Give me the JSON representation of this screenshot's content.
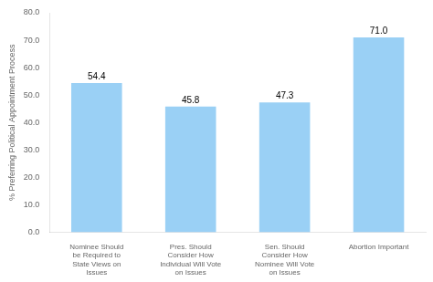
{
  "chart_data": {
    "type": "bar",
    "categories": [
      "Nominee Should\nbe Required to\nState Views on\nIssues",
      "Pres. Should\nConsider How\nIndividual Will Vote\non Issues",
      "Sen. Should\nConsider How\nNominee Will Vote\non Issues",
      "Abortion Important"
    ],
    "values": [
      54.4,
      45.8,
      47.3,
      71.0
    ],
    "value_labels": [
      "54.4",
      "45.8",
      "47.3",
      "71.0"
    ],
    "data_labels": true,
    "y_label": "% Preferring Political Appointment Process",
    "ylim": [
      0,
      80
    ],
    "yticks": [
      {
        "value": 0,
        "label": "0.0"
      },
      {
        "value": 10,
        "label": "10.0"
      },
      {
        "value": 20,
        "label": "20.0"
      },
      {
        "value": 30,
        "label": "30.0"
      },
      {
        "value": 40,
        "label": "40.0"
      },
      {
        "value": 50,
        "label": "50.0"
      },
      {
        "value": 60,
        "label": "60.0"
      },
      {
        "value": 70,
        "label": "70.0"
      },
      {
        "value": 80,
        "label": "80.0"
      }
    ],
    "grid": false
  }
}
